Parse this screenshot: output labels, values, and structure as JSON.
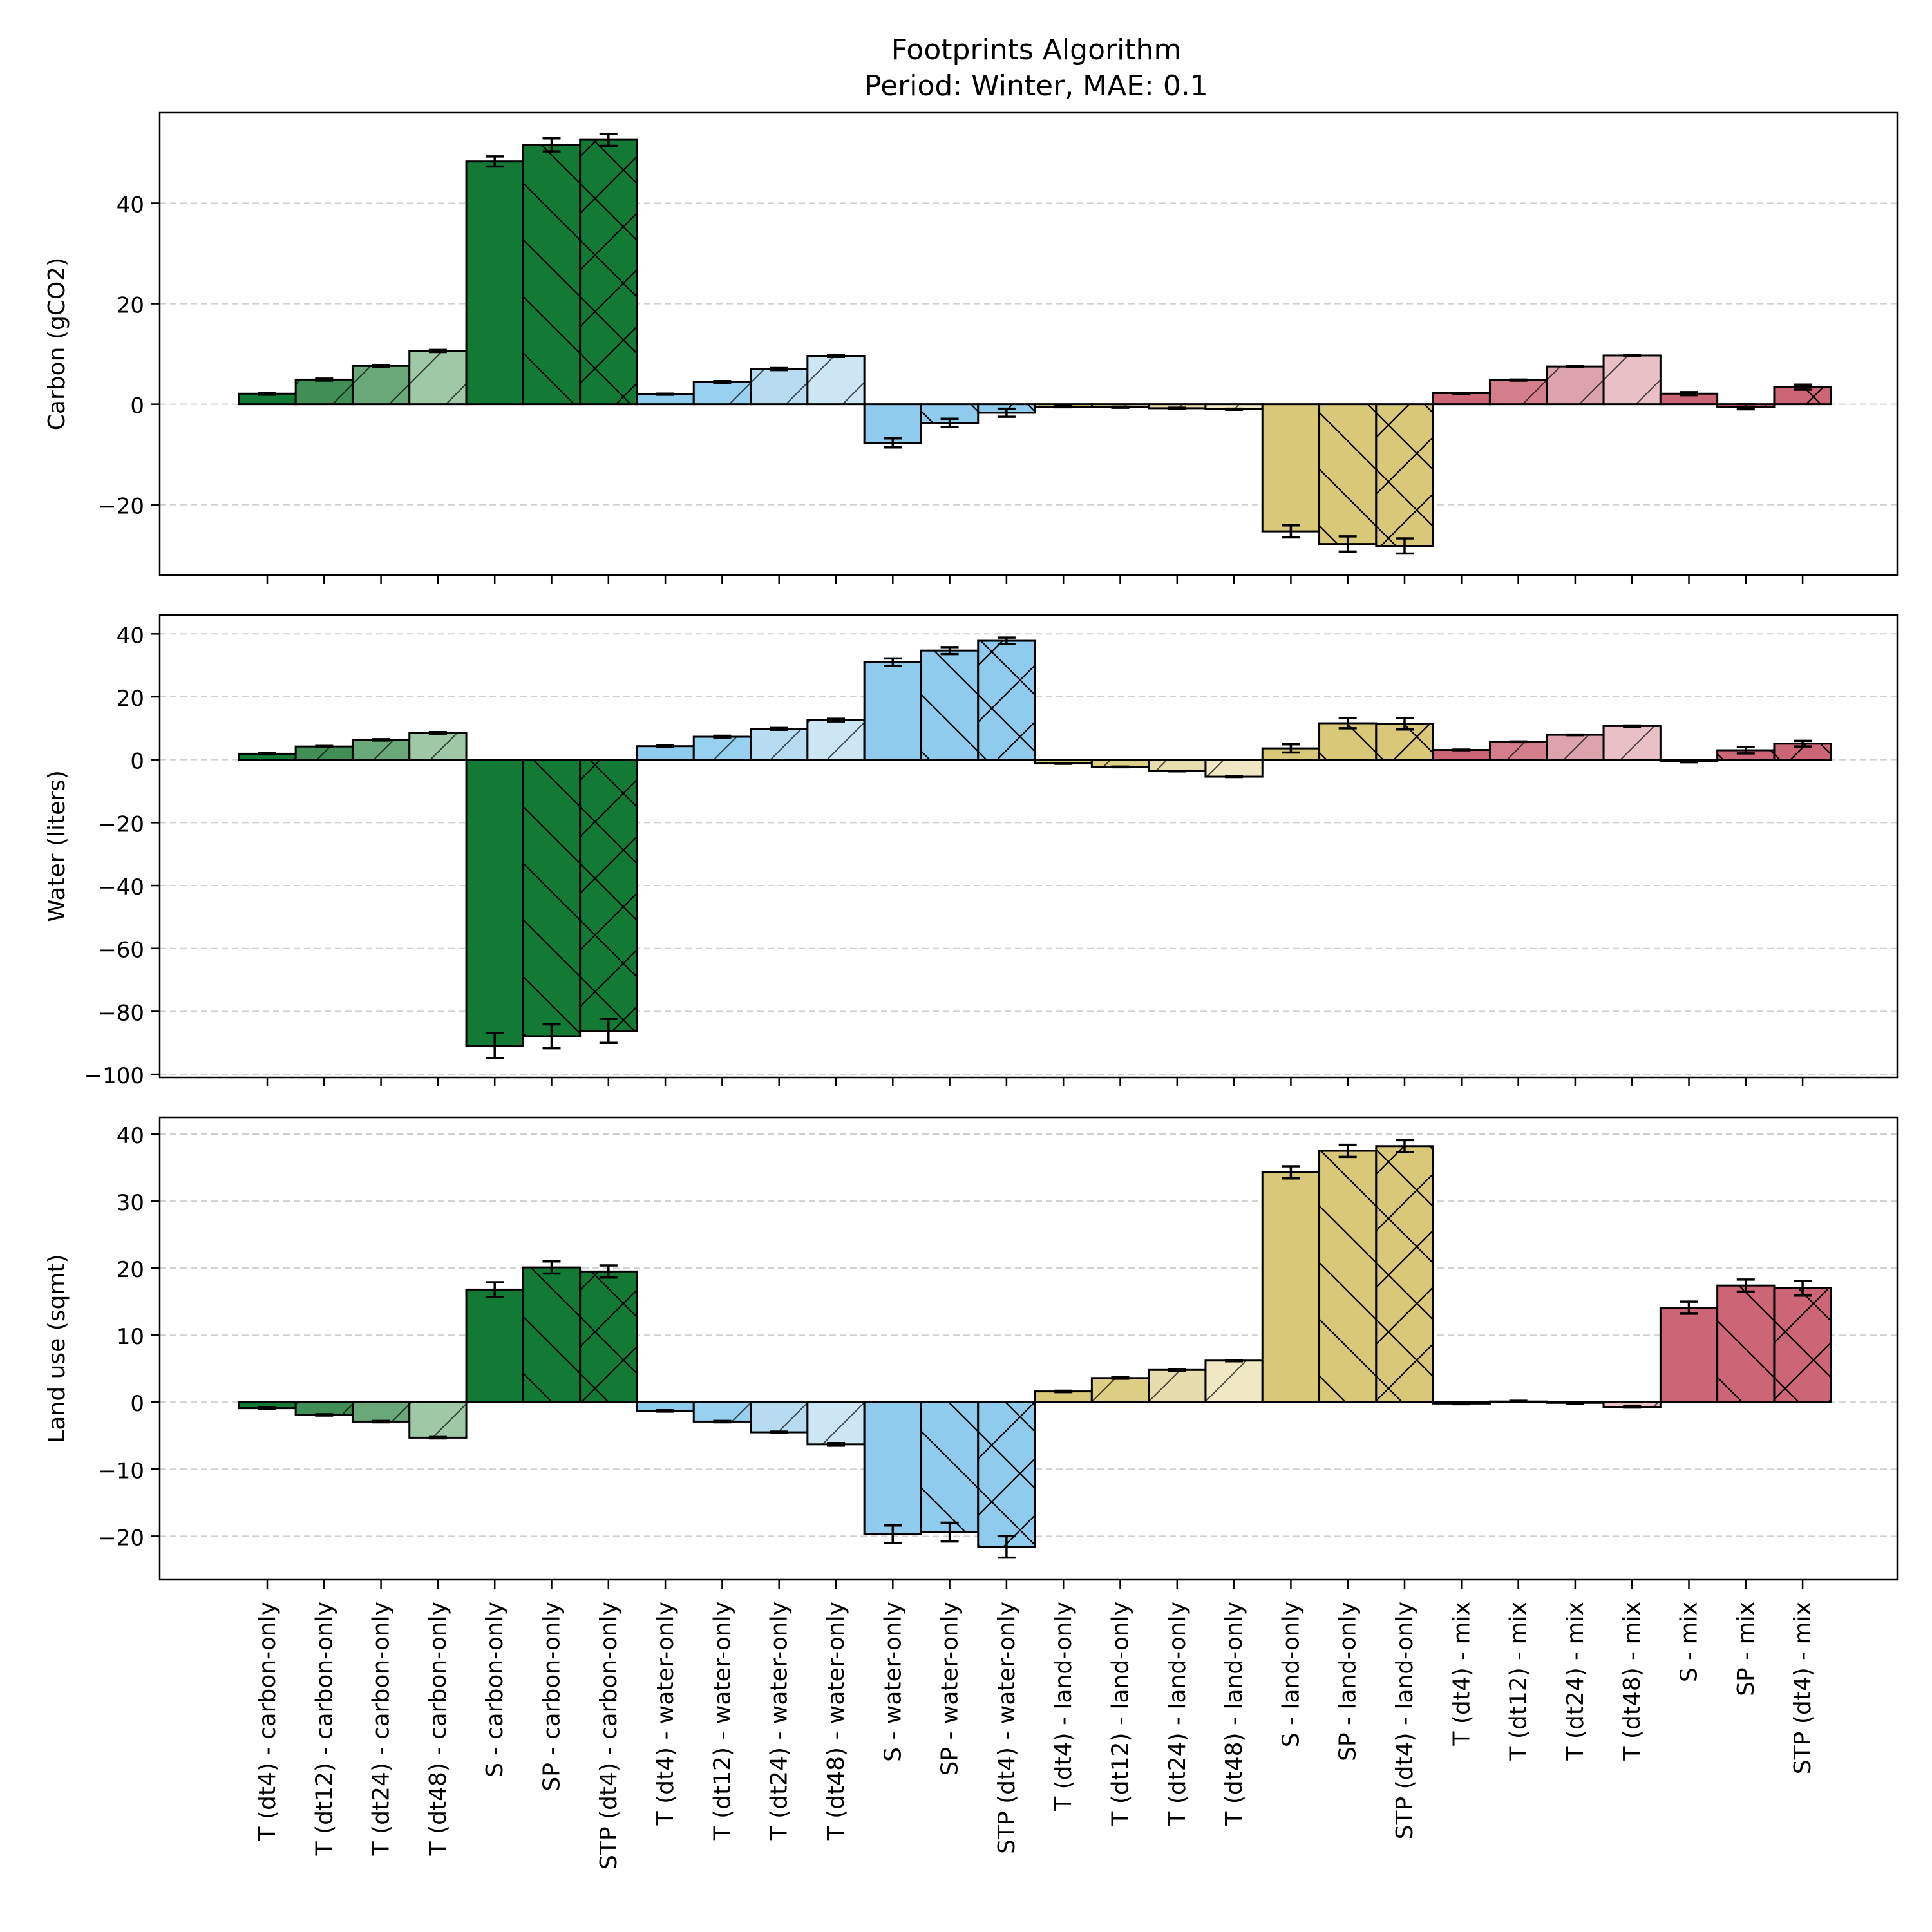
{
  "chart_data": {
    "type": "bar",
    "title": "Footprints Algorithm",
    "subtitle": "Period: Winter, MAE: 0.1",
    "categories": [
      "T (dt4) - carbon-only",
      "T (dt12) - carbon-only",
      "T (dt24) - carbon-only",
      "T (dt48) - carbon-only",
      "S - carbon-only",
      "SP - carbon-only",
      "STP (dt4) - carbon-only",
      "T (dt4) - water-only",
      "T (dt12) - water-only",
      "T (dt24) - water-only",
      "T (dt48) - water-only",
      "S - water-only",
      "SP - water-only",
      "STP (dt4) - water-only",
      "T (dt4) - land-only",
      "T (dt12) - land-only",
      "T (dt24) - land-only",
      "T (dt48) - land-only",
      "S - land-only",
      "SP - land-only",
      "STP (dt4) - land-only",
      "T (dt4) - mix",
      "T (dt12) - mix",
      "T (dt24) - mix",
      "T (dt48) - mix",
      "S - mix",
      "SP - mix",
      "STP (dt4) - mix"
    ],
    "colors": [
      "#137a35",
      "#418f56",
      "#6aa879",
      "#9fc8a6",
      "#137a35",
      "#137a35",
      "#137a35",
      "#8ecbec",
      "#98d0ef",
      "#b7dcf1",
      "#cce6f4",
      "#8ecbec",
      "#8ecbec",
      "#8ecbec",
      "#d8c877",
      "#dccf85",
      "#e6dcae",
      "#f0e8c4",
      "#d8c877",
      "#d8c877",
      "#d8c877",
      "#cc6677",
      "#d57e8b",
      "#dda3ac",
      "#e8c0c6",
      "#cc6677",
      "#cc6677",
      "#cc6677"
    ],
    "hatches": [
      "none",
      "slash",
      "slash",
      "slash",
      "none",
      "backslash",
      "cross",
      "none",
      "slash",
      "slash",
      "slash",
      "none",
      "backslash",
      "cross",
      "none",
      "slash",
      "slash",
      "slash",
      "none",
      "backslash",
      "cross",
      "none",
      "slash",
      "slash",
      "slash",
      "none",
      "backslash",
      "cross"
    ],
    "panels": [
      {
        "ylabel": "Carbon (gCO2)",
        "ylim": [
          -34,
          58
        ],
        "yticks": [
          -20,
          0,
          20,
          40
        ],
        "ytick_labels": [
          "−20",
          "0",
          "20",
          "40"
        ],
        "grid": true,
        "values": [
          2.1,
          4.9,
          7.6,
          10.6,
          48.3,
          51.6,
          52.6,
          2.0,
          4.4,
          7.0,
          9.6,
          -7.7,
          -3.7,
          -1.7,
          -0.5,
          -0.6,
          -0.8,
          -1.0,
          -25.3,
          -27.8,
          -28.2,
          2.2,
          4.8,
          7.5,
          9.7,
          2.1,
          -0.5,
          3.4
        ],
        "errors": [
          0.2,
          0.2,
          0.2,
          0.2,
          1.0,
          1.3,
          1.2,
          0.1,
          0.2,
          0.2,
          0.2,
          0.9,
          0.8,
          0.8,
          0.1,
          0.1,
          0.1,
          0.1,
          1.2,
          1.5,
          1.5,
          0.1,
          0.1,
          0.1,
          0.1,
          0.3,
          0.5,
          0.5
        ]
      },
      {
        "ylabel": "Water (liters)",
        "ylim": [
          -101,
          46
        ],
        "yticks": [
          -100,
          -80,
          -60,
          -40,
          -20,
          0,
          20,
          40
        ],
        "ytick_labels": [
          "−100",
          "−80",
          "−60",
          "−40",
          "−20",
          "0",
          "20",
          "40"
        ],
        "grid": true,
        "values": [
          1.9,
          4.2,
          6.3,
          8.5,
          -90.9,
          -87.9,
          -86.2,
          4.3,
          7.3,
          9.8,
          12.6,
          31.0,
          34.7,
          37.8,
          -1.2,
          -2.3,
          -3.6,
          -5.4,
          3.6,
          11.6,
          11.4,
          3.1,
          5.7,
          7.9,
          10.7,
          -0.5,
          3.0,
          5.1
        ],
        "errors": [
          0.2,
          0.2,
          0.2,
          0.3,
          4.0,
          3.8,
          3.8,
          0.2,
          0.3,
          0.3,
          0.4,
          1.2,
          1.1,
          1.0,
          0.1,
          0.1,
          0.1,
          0.1,
          1.3,
          1.6,
          1.8,
          0.1,
          0.1,
          0.1,
          0.2,
          0.3,
          1.0,
          0.9
        ]
      },
      {
        "ylabel": "Land use (sqmt)",
        "ylim": [
          -26.5,
          42.5
        ],
        "yticks": [
          -20,
          -10,
          0,
          10,
          20,
          30,
          40
        ],
        "ytick_labels": [
          "−20",
          "−10",
          "0",
          "10",
          "20",
          "30",
          "40"
        ],
        "grid": true,
        "values": [
          -0.9,
          -1.9,
          -2.9,
          -5.3,
          16.8,
          20.1,
          19.5,
          -1.3,
          -2.9,
          -4.5,
          -6.3,
          -19.7,
          -19.4,
          -21.6,
          1.6,
          3.6,
          4.8,
          6.2,
          34.3,
          37.5,
          38.2,
          -0.2,
          0.1,
          -0.1,
          -0.7,
          14.1,
          17.4,
          17.0
        ],
        "errors": [
          0.1,
          0.1,
          0.1,
          0.1,
          1.1,
          0.9,
          0.9,
          0.1,
          0.1,
          0.1,
          0.2,
          1.3,
          1.4,
          1.6,
          0.1,
          0.1,
          0.1,
          0.1,
          0.9,
          0.9,
          0.9,
          0.1,
          0.1,
          0.1,
          0.1,
          0.9,
          0.9,
          1.1
        ]
      }
    ]
  }
}
